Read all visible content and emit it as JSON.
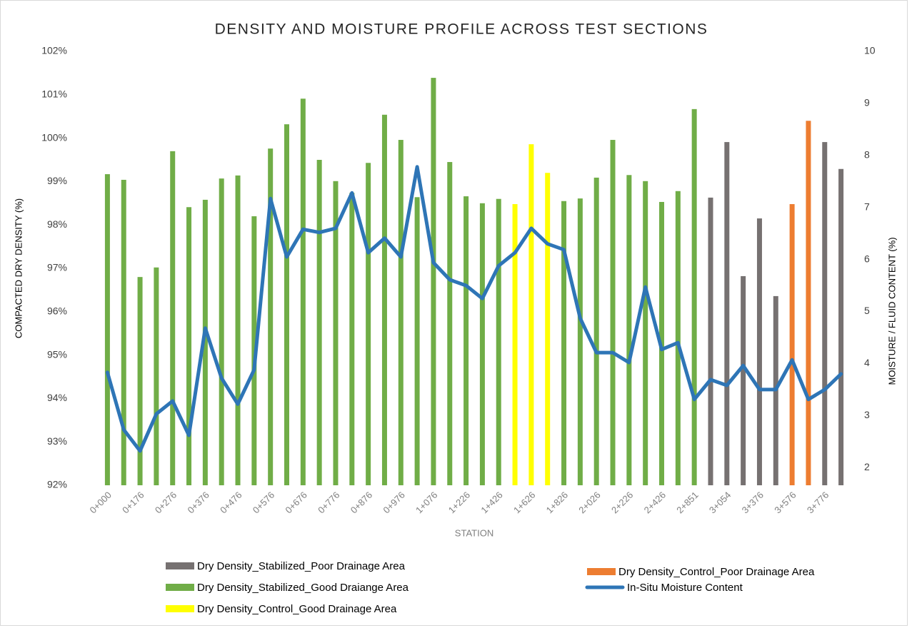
{
  "chart_data": {
    "type": "bar",
    "title": "DENSITY AND MOISTURE PROFILE ACROSS TEST SECTIONS",
    "x_label": "STATION",
    "y_label": "COMPACTED DRY DENSITY (%)",
    "y2_label": "MOISTURE / FLUID CONTENT (%)",
    "categories": [
      "0+000",
      null,
      "0+176",
      null,
      "0+276",
      null,
      "0+376",
      null,
      "0+476",
      null,
      "0+576",
      null,
      "0+676",
      null,
      "0+776",
      null,
      "0+876",
      null,
      "0+976",
      null,
      "1+076",
      null,
      "1+226",
      null,
      "1+426",
      null,
      "1+626",
      null,
      "1+826",
      null,
      "2+026",
      null,
      "2+226",
      null,
      "2+426",
      null,
      "2+851",
      null,
      "3+054",
      null,
      "3+376",
      null,
      "3+576",
      null,
      "3+776",
      null
    ],
    "ylim": [
      92,
      102
    ],
    "yticks": [
      {
        "value": 92,
        "label": "92%"
      },
      {
        "value": 93,
        "label": "93%"
      },
      {
        "value": 94,
        "label": "94%"
      },
      {
        "value": 95,
        "label": "95%"
      },
      {
        "value": 96,
        "label": "96%"
      },
      {
        "value": 97,
        "label": "97%"
      },
      {
        "value": 98,
        "label": "98%"
      },
      {
        "value": 99,
        "label": "99%"
      },
      {
        "value": 100,
        "label": "100%"
      },
      {
        "value": 101,
        "label": "101%"
      },
      {
        "value": 102,
        "label": "102%"
      }
    ],
    "y2lim": [
      1.66,
      10
    ],
    "y2ticks": [
      2,
      3,
      4,
      5,
      6,
      7,
      8,
      9,
      10
    ],
    "series": [
      {
        "name": "Dry Density_Stabilized_Poor Drainage Area",
        "type": "bar",
        "color": "#767171",
        "values": [
          null,
          null,
          null,
          null,
          null,
          null,
          null,
          null,
          null,
          null,
          null,
          null,
          null,
          null,
          null,
          null,
          null,
          null,
          null,
          null,
          null,
          null,
          null,
          null,
          null,
          null,
          null,
          null,
          null,
          null,
          null,
          null,
          null,
          null,
          null,
          null,
          null,
          98.63,
          99.91,
          96.82,
          98.15,
          96.36,
          null,
          null,
          99.91,
          99.29
        ]
      },
      {
        "name": "Dry Density_Stabilized_Good Draiange Area",
        "type": "bar",
        "color": "#70ad47",
        "values": [
          99.17,
          99.04,
          96.8,
          97.02,
          99.7,
          98.41,
          98.58,
          99.07,
          99.14,
          98.2,
          99.76,
          100.32,
          100.91,
          99.5,
          99.01,
          98.74,
          99.43,
          100.54,
          99.96,
          98.64,
          101.39,
          99.45,
          98.66,
          98.5,
          98.6,
          null,
          null,
          null,
          98.55,
          98.61,
          99.09,
          99.96,
          99.15,
          99.01,
          98.53,
          98.78,
          100.67,
          null,
          null,
          null,
          null,
          null,
          null,
          null,
          null,
          null
        ]
      },
      {
        "name": "Dry Density_Control_Good Drainage Area",
        "type": "bar",
        "color": "#ffff00",
        "values": [
          null,
          null,
          null,
          null,
          null,
          null,
          null,
          null,
          null,
          null,
          null,
          null,
          null,
          null,
          null,
          null,
          null,
          null,
          null,
          null,
          null,
          null,
          null,
          null,
          null,
          98.48,
          99.86,
          99.2,
          null,
          null,
          null,
          null,
          null,
          null,
          null,
          null,
          null,
          null,
          null,
          null,
          null,
          null,
          null,
          null,
          null,
          null
        ]
      },
      {
        "name": "Dry Density_Control_Poor Drainage Area",
        "type": "bar",
        "color": "#ed7d31",
        "values": [
          null,
          null,
          null,
          null,
          null,
          null,
          null,
          null,
          null,
          null,
          null,
          null,
          null,
          null,
          null,
          null,
          null,
          null,
          null,
          null,
          null,
          null,
          null,
          null,
          null,
          null,
          null,
          null,
          null,
          null,
          null,
          null,
          null,
          null,
          null,
          null,
          null,
          null,
          null,
          null,
          null,
          null,
          98.48,
          100.4,
          null,
          null
        ]
      },
      {
        "name": "In-Situ Moisture Content",
        "type": "line",
        "axis": "y2",
        "color": "#2e75b6",
        "values": [
          3.83,
          2.73,
          2.32,
          3.03,
          3.28,
          2.62,
          4.68,
          3.72,
          3.22,
          3.88,
          7.17,
          6.05,
          6.58,
          6.52,
          6.6,
          7.28,
          6.13,
          6.41,
          6.05,
          7.78,
          5.94,
          5.61,
          5.5,
          5.25,
          5.88,
          6.13,
          6.6,
          6.3,
          6.19,
          4.87,
          4.21,
          4.21,
          4.02,
          5.47,
          4.27,
          4.4,
          3.31,
          3.69,
          3.58,
          3.96,
          3.5,
          3.5,
          4.07,
          3.31,
          3.5,
          3.8
        ]
      }
    ]
  }
}
